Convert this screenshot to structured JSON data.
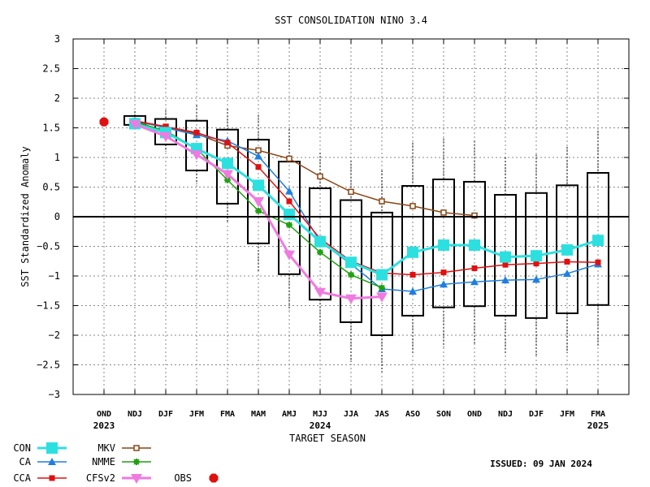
{
  "chart_data": {
    "type": "line",
    "title": "SST CONSOLIDATION NINO 3.4",
    "xlabel": "TARGET SEASON",
    "ylabel": "SST Standardized Anomaly",
    "issued": "ISSUED: 09 JAN 2024",
    "ylim": [
      -3,
      3
    ],
    "yticks": [
      "3",
      "2.5",
      "2",
      "1.5",
      "1",
      "0.5",
      "0",
      "−0.5",
      "−1",
      "−1.5",
      "−2",
      "−2.5",
      "−3"
    ],
    "grid": true,
    "categories": [
      "OND",
      "NDJ",
      "DJF",
      "JFM",
      "FMA",
      "MAM",
      "AMJ",
      "MJJ",
      "JJA",
      "JAS",
      "ASO",
      "SON",
      "OND",
      "NDJ",
      "DJF",
      "JFM",
      "FMA"
    ],
    "year_labels": [
      {
        "index": 0,
        "text": "2023"
      },
      {
        "index": 7,
        "text": "2024"
      },
      {
        "index": 16,
        "text": "2025"
      }
    ],
    "boxes": [
      null,
      {
        "min": 1.55,
        "q1": 1.55,
        "q3": 1.7,
        "max": 1.78
      },
      {
        "min": 1.1,
        "q1": 1.22,
        "q3": 1.65,
        "max": 1.8
      },
      {
        "min": 0.55,
        "q1": 0.78,
        "q3": 1.62,
        "max": 1.88
      },
      {
        "min": -0.1,
        "q1": 0.22,
        "q3": 1.47,
        "max": 1.82
      },
      {
        "min": -0.92,
        "q1": -0.45,
        "q3": 1.3,
        "max": 1.72
      },
      {
        "min": -1.58,
        "q1": -0.97,
        "q3": 0.93,
        "max": 1.48
      },
      {
        "min": -2.0,
        "q1": -1.4,
        "q3": 0.48,
        "max": 1.08
      },
      {
        "min": -2.45,
        "q1": -1.78,
        "q3": 0.28,
        "max": 0.95
      },
      {
        "min": -2.62,
        "q1": -2.0,
        "q3": 0.07,
        "max": 0.78
      },
      {
        "min": -2.33,
        "q1": -1.67,
        "q3": 0.52,
        "max": 1.25
      },
      {
        "min": -2.2,
        "q1": -1.53,
        "q3": 0.63,
        "max": 1.32
      },
      {
        "min": -2.17,
        "q1": -1.51,
        "q3": 0.59,
        "max": 1.28
      },
      {
        "min": -2.33,
        "q1": -1.67,
        "q3": 0.37,
        "max": 1.0
      },
      {
        "min": -2.35,
        "q1": -1.71,
        "q3": 0.4,
        "max": 1.05
      },
      {
        "min": -2.3,
        "q1": -1.63,
        "q3": 0.53,
        "max": 1.18
      },
      {
        "min": -2.2,
        "q1": -1.49,
        "q3": 0.74,
        "max": 1.45
      }
    ],
    "series": [
      {
        "name": "MKV",
        "color": "#8b4513",
        "marker": "open-square",
        "values": [
          null,
          1.6,
          1.52,
          1.4,
          1.2,
          1.12,
          0.98,
          0.68,
          0.42,
          0.26,
          0.18,
          0.07,
          0.02,
          null,
          null,
          null,
          null
        ]
      },
      {
        "name": "CA",
        "color": "#1e7fe0",
        "marker": "triangle",
        "values": [
          null,
          1.62,
          1.5,
          1.38,
          1.28,
          1.02,
          0.43,
          -0.42,
          -0.8,
          -1.22,
          -1.26,
          -1.14,
          -1.1,
          -1.07,
          -1.06,
          -0.96,
          -0.8
        ]
      },
      {
        "name": "CCA",
        "color": "#e01010",
        "marker": "filled-square",
        "values": [
          null,
          1.62,
          1.52,
          1.42,
          1.25,
          0.84,
          0.26,
          -0.37,
          -0.75,
          -0.95,
          -0.98,
          -0.94,
          -0.87,
          -0.81,
          -0.79,
          -0.76,
          -0.77
        ]
      },
      {
        "name": "NMME",
        "color": "#1fa010",
        "marker": "star",
        "values": [
          null,
          1.6,
          1.45,
          1.15,
          0.62,
          0.1,
          -0.14,
          -0.6,
          -0.98,
          -1.2,
          null,
          null,
          null,
          null,
          null,
          null,
          null
        ]
      },
      {
        "name": "CON",
        "color": "#2de0e0",
        "marker": "big-square",
        "values": [
          null,
          1.57,
          1.42,
          1.15,
          0.9,
          0.53,
          0.04,
          -0.42,
          -0.77,
          -0.98,
          -0.6,
          -0.48,
          -0.48,
          -0.68,
          -0.66,
          -0.56,
          -0.4
        ]
      },
      {
        "name": "CFSv2",
        "color": "#f07ae0",
        "marker": "triangle-down",
        "values": [
          null,
          1.56,
          1.36,
          1.05,
          0.72,
          0.26,
          -0.64,
          -1.27,
          -1.38,
          -1.35,
          null,
          null,
          null,
          null,
          null,
          null,
          null
        ]
      }
    ],
    "obs": {
      "name": "OBS",
      "color": "#e01010",
      "index": 0,
      "value": 1.6
    },
    "legend": [
      {
        "name": "CON",
        "marker": "big-square",
        "color": "#2de0e0"
      },
      {
        "name": "CA",
        "marker": "triangle",
        "color": "#1e7fe0"
      },
      {
        "name": "CCA",
        "marker": "filled-square",
        "color": "#e01010"
      },
      {
        "name": "MKV",
        "marker": "open-square",
        "color": "#8b4513"
      },
      {
        "name": "NMME",
        "marker": "star",
        "color": "#1fa010"
      },
      {
        "name": "CFSv2",
        "marker": "triangle-down",
        "color": "#f07ae0"
      },
      {
        "name": "OBS",
        "marker": "octagon",
        "color": "#e01010"
      }
    ],
    "legend_placement": "bottom-left"
  }
}
